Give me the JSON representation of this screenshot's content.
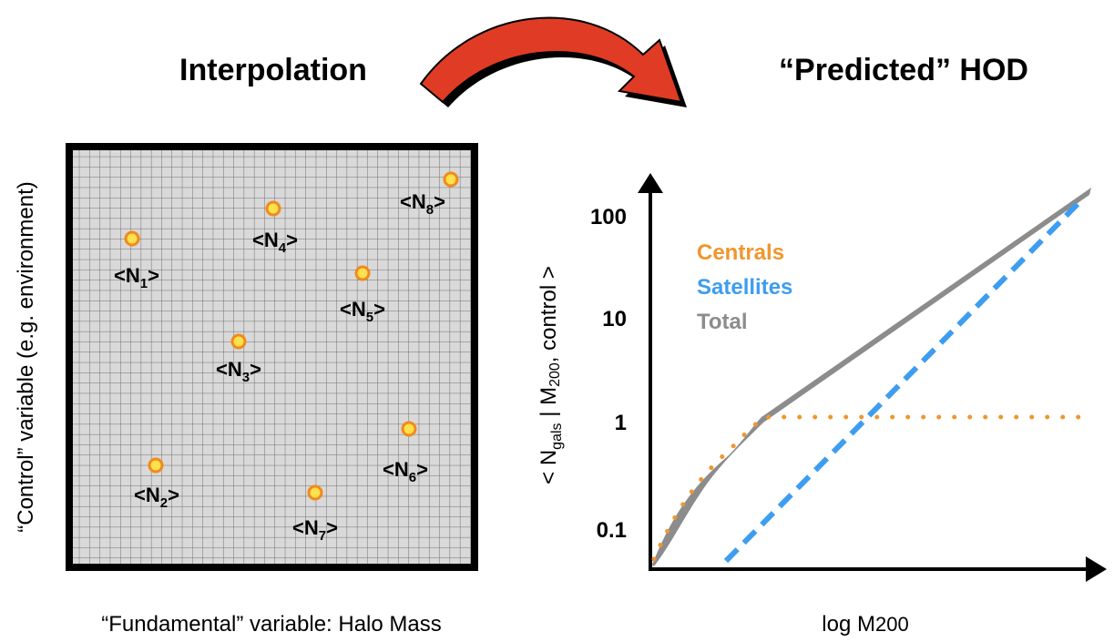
{
  "left": {
    "title": "Interpolation",
    "y_label": "“Control” variable (e.g. environment)",
    "x_label": "“Fundamental” variable: Halo Mass",
    "nodes": [
      {
        "base": "<N",
        "sub": "1",
        "end": ">"
      },
      {
        "base": "<N",
        "sub": "2",
        "end": ">"
      },
      {
        "base": "<N",
        "sub": "3",
        "end": ">"
      },
      {
        "base": "<N",
        "sub": "4",
        "end": ">"
      },
      {
        "base": "<N",
        "sub": "5",
        "end": ">"
      },
      {
        "base": "<N",
        "sub": "6",
        "end": ">"
      },
      {
        "base": "<N",
        "sub": "7",
        "end": ">"
      },
      {
        "base": "<N",
        "sub": "8",
        "end": ">"
      }
    ]
  },
  "right": {
    "title": "“Predicted” HOD",
    "y_label": {
      "a": "< N",
      "sub": "gals",
      "b": " | M",
      "sub2": "200",
      "c": ", control >"
    },
    "x_label": {
      "a": "log M",
      "sub": "200"
    },
    "y_ticks": [
      "100",
      "10",
      "1",
      "0.1"
    ],
    "legend": [
      {
        "name": "Centrals",
        "color": "#f0962e"
      },
      {
        "name": "Satellites",
        "color": "#3d9df0"
      },
      {
        "name": "Total",
        "color": "#8c8c8c"
      }
    ]
  }
}
